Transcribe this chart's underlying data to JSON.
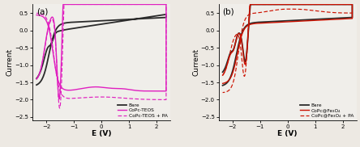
{
  "panel_a": {
    "title": "(a)",
    "xlabel": "E (V)",
    "ylabel": "Current",
    "xlim": [
      -2.5,
      2.5
    ],
    "ylim": [
      -2.6,
      0.75
    ],
    "yticks": [
      -2.5,
      -2.0,
      -1.5,
      -1.0,
      -0.5,
      0.0,
      0.5
    ],
    "xticks": [
      -2,
      -1,
      0,
      1,
      2
    ],
    "legend": [
      "Bare",
      "CoPc-TEOS",
      "CoPc-TEOS + PA"
    ],
    "colors": [
      "#2b2b2b",
      "#e020c0",
      "#e020c0"
    ],
    "linestyles": [
      "-",
      "-",
      "--"
    ],
    "bg_color": "#f0eeea"
  },
  "panel_b": {
    "title": "(b)",
    "xlabel": "E (V)",
    "ylabel": "Current",
    "xlim": [
      -2.5,
      2.5
    ],
    "ylim": [
      -2.6,
      0.75
    ],
    "yticks": [
      -2.5,
      -2.0,
      -1.5,
      -1.0,
      -0.5,
      0.0,
      0.5
    ],
    "xticks": [
      -2,
      -1,
      0,
      1,
      2
    ],
    "legend": [
      "Bare",
      "CoPc@Fe₃O₄",
      "CoPc@Fe₃O₄ + PA"
    ],
    "colors": [
      "#2b2b2b",
      "#cc1100",
      "#cc1100"
    ],
    "linestyles": [
      "-",
      "-",
      "--"
    ],
    "bg_color": "#f0eeea"
  }
}
